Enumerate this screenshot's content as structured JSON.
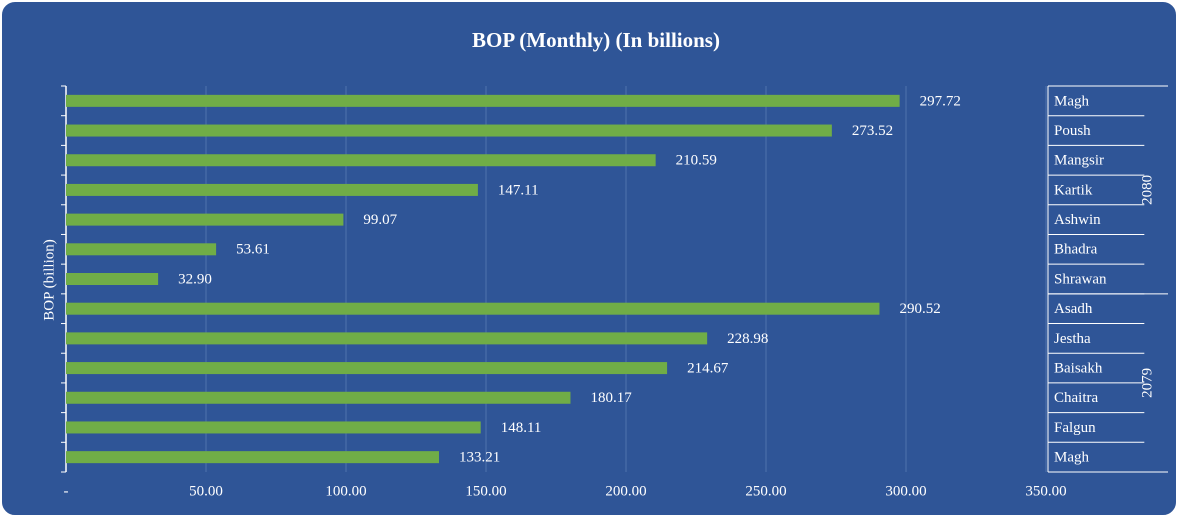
{
  "chart_data": {
    "type": "bar",
    "orientation": "horizontal",
    "title": "BOP (Monthly) (In billions)",
    "y_label": "BOP (billion)",
    "categories": [
      "Magh",
      "Poush",
      "Mangsir",
      "Kartik",
      "Ashwin",
      "Bhadra",
      "Shrawan",
      "Asadh",
      "Jestha",
      "Baisakh",
      "Chaitra",
      "Falgun",
      "Magh"
    ],
    "groups": [
      {
        "label": "2080",
        "size": 7
      },
      {
        "label": "2079",
        "size": 6
      }
    ],
    "values": [
      297.72,
      273.52,
      210.59,
      147.11,
      99.07,
      53.61,
      32.9,
      290.52,
      228.98,
      214.67,
      180.17,
      148.11,
      133.21
    ],
    "value_labels": [
      "297.72",
      "273.52",
      "210.59",
      "147.11",
      "99.07",
      "53.61",
      "32.90",
      "290.52",
      "228.98",
      "214.67",
      "180.17",
      "148.11",
      "133.21"
    ],
    "color": "#70ad47",
    "xlim": [
      0,
      350
    ],
    "xticks": [
      {
        "value": 0,
        "label": "-"
      },
      {
        "value": 50,
        "label": "50.00"
      },
      {
        "value": 100,
        "label": "100.00"
      },
      {
        "value": 150,
        "label": "150.00"
      },
      {
        "value": 200,
        "label": "200.00"
      },
      {
        "value": 250,
        "label": "250.00"
      },
      {
        "value": 300,
        "label": "300.00"
      },
      {
        "value": 350,
        "label": "350.00"
      }
    ],
    "grid": true
  }
}
